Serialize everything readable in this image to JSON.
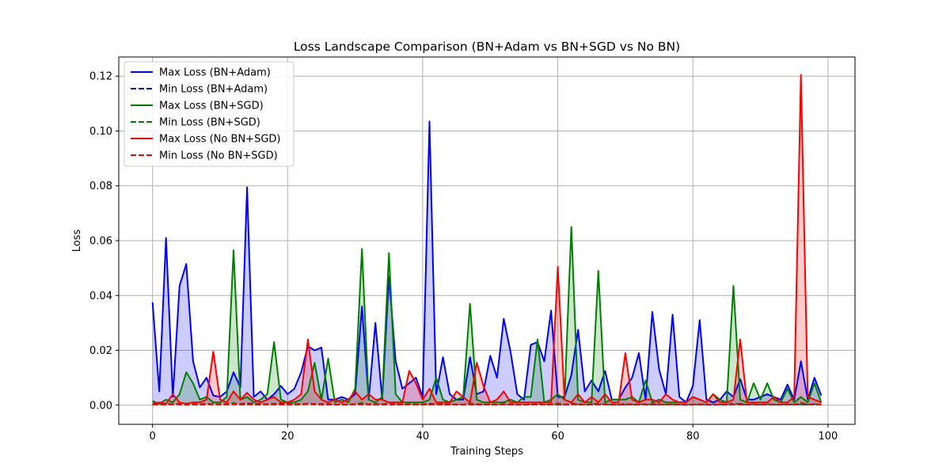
{
  "chart_data": {
    "type": "line",
    "title": "Loss Landscape Comparison (BN+Adam vs BN+SGD vs No BN)",
    "xlabel": "Training Steps",
    "ylabel": "Loss",
    "xlim": [
      -5,
      104
    ],
    "ylim": [
      -0.007,
      0.127
    ],
    "xticks": [
      0,
      20,
      40,
      60,
      80,
      100
    ],
    "yticks": [
      0.0,
      0.02,
      0.04,
      0.06,
      0.08,
      0.1,
      0.12
    ],
    "ytick_labels": [
      "0.00",
      "0.02",
      "0.04",
      "0.06",
      "0.08",
      "0.10",
      "0.12"
    ],
    "grid": true,
    "legend_position": "top-left",
    "x": [
      0,
      1,
      2,
      3,
      4,
      5,
      6,
      7,
      8,
      9,
      10,
      11,
      12,
      13,
      14,
      15,
      16,
      17,
      18,
      19,
      20,
      21,
      22,
      23,
      24,
      25,
      26,
      27,
      28,
      29,
      30,
      31,
      32,
      33,
      34,
      35,
      36,
      37,
      38,
      39,
      40,
      41,
      42,
      43,
      44,
      45,
      46,
      47,
      48,
      49,
      50,
      51,
      52,
      53,
      54,
      55,
      56,
      57,
      58,
      59,
      60,
      61,
      62,
      63,
      64,
      65,
      66,
      67,
      68,
      69,
      70,
      71,
      72,
      73,
      74,
      75,
      76,
      77,
      78,
      79,
      80,
      81,
      82,
      83,
      84,
      85,
      86,
      87,
      88,
      89,
      90,
      91,
      92,
      93,
      94,
      95,
      96,
      97,
      98,
      99
    ],
    "series": [
      {
        "name": "Max Loss (BN+Adam)",
        "color": "#0000ff",
        "style": "solid",
        "fill": "#0000ff",
        "values": [
          0.0375,
          0.005,
          0.061,
          0.003,
          0.0435,
          0.0515,
          0.016,
          0.0065,
          0.01,
          0.0035,
          0.003,
          0.005,
          0.012,
          0.0065,
          0.0795,
          0.003,
          0.005,
          0.002,
          0.004,
          0.007,
          0.004,
          0.006,
          0.012,
          0.0215,
          0.02,
          0.021,
          0.002,
          0.002,
          0.003,
          0.002,
          0.004,
          0.036,
          0.002,
          0.03,
          0.002,
          0.047,
          0.016,
          0.006,
          0.008,
          0.01,
          0.003,
          0.1035,
          0.004,
          0.0175,
          0.004,
          0.002,
          0.002,
          0.0175,
          0.004,
          0.005,
          0.018,
          0.01,
          0.0315,
          0.0195,
          0.004,
          0.002,
          0.022,
          0.023,
          0.016,
          0.0345,
          0.003,
          0.003,
          0.011,
          0.0275,
          0.005,
          0.009,
          0.005,
          0.0125,
          0.002,
          0.002,
          0.0065,
          0.01,
          0.019,
          0.002,
          0.034,
          0.013,
          0.004,
          0.033,
          0.003,
          0.001,
          0.007,
          0.031,
          0.002,
          0.001,
          0.002,
          0.005,
          0.003,
          0.0095,
          0.002,
          0.002,
          0.003,
          0.004,
          0.003,
          0.002,
          0.0075,
          0.002,
          0.016,
          0.002,
          0.01,
          0.0035
        ]
      },
      {
        "name": "Min Loss (BN+Adam)",
        "color": "#0000ff",
        "style": "dashed",
        "values": [
          0.0005,
          0.0003,
          0.0005,
          0.0003,
          0.0005,
          0.0004,
          0.0003,
          0.0003,
          0.0005,
          0.0003,
          0.0003,
          0.0004,
          0.0005,
          0.0004,
          0.0006,
          0.0005,
          0.0004,
          0.0003,
          0.0004,
          0.0005,
          0.0004,
          0.0003,
          0.0004,
          0.0004,
          0.0003,
          0.0004,
          0.0003,
          0.0002,
          0.0003,
          0.0002,
          0.0003,
          0.0005,
          0.0003,
          0.0004,
          0.0003,
          0.0006,
          0.0004,
          0.0003,
          0.0004,
          0.0003,
          0.0003,
          0.0005,
          0.0003,
          0.0004,
          0.0003,
          0.0002,
          0.0002,
          0.0003,
          0.0002,
          0.0002,
          0.0003,
          0.0002,
          0.0004,
          0.0003,
          0.0002,
          0.0002,
          0.0003,
          0.0003,
          0.0002,
          0.0003,
          0.0002,
          0.0002,
          0.0003,
          0.0004,
          0.0002,
          0.0003,
          0.0002,
          0.0003,
          0.0002,
          0.0002,
          0.0002,
          0.0003,
          0.0003,
          0.0002,
          0.0004,
          0.0003,
          0.0002,
          0.0003,
          0.0002,
          0.0001,
          0.0002,
          0.0003,
          0.0002,
          0.0001,
          0.0002,
          0.0002,
          0.0002,
          0.0003,
          0.0002,
          0.0002,
          0.0002,
          0.0002,
          0.0002,
          0.0002,
          0.0003,
          0.0002,
          0.0004,
          0.0002,
          0.0003,
          0.0002
        ]
      },
      {
        "name": "Max Loss (BN+SGD)",
        "color": "#008000",
        "style": "solid",
        "fill": "#008000",
        "values": [
          0.0015,
          0.0005,
          0.002,
          0.001,
          0.004,
          0.012,
          0.008,
          0.002,
          0.003,
          0.001,
          0.001,
          0.003,
          0.0565,
          0.002,
          0.003,
          0.001,
          0.002,
          0.004,
          0.023,
          0.002,
          0.001,
          0.001,
          0.002,
          0.005,
          0.0155,
          0.002,
          0.017,
          0.001,
          0.002,
          0.001,
          0.006,
          0.057,
          0.002,
          0.001,
          0.003,
          0.0555,
          0.004,
          0.001,
          0.001,
          0.001,
          0.001,
          0.002,
          0.01,
          0.002,
          0.001,
          0.002,
          0.003,
          0.037,
          0.002,
          0.001,
          0.001,
          0.001,
          0.001,
          0.002,
          0.001,
          0.003,
          0.003,
          0.024,
          0.001,
          0.002,
          0.004,
          0.002,
          0.065,
          0.002,
          0.001,
          0.001,
          0.049,
          0.001,
          0.002,
          0.002,
          0.002,
          0.003,
          0.001,
          0.009,
          0.001,
          0.002,
          0.001,
          0.001,
          0.001,
          0.001,
          0.003,
          0.002,
          0.001,
          0.004,
          0.002,
          0.001,
          0.0435,
          0.002,
          0.001,
          0.008,
          0.002,
          0.008,
          0.002,
          0.001,
          0.006,
          0.001,
          0.003,
          0.001,
          0.008,
          0.001
        ]
      },
      {
        "name": "Min Loss (BN+SGD)",
        "color": "#008000",
        "style": "dashed",
        "values": [
          0.0003,
          0.0002,
          0.0003,
          0.0002,
          0.0004,
          0.0006,
          0.0004,
          0.0002,
          0.0003,
          0.0002,
          0.0002,
          0.0003,
          0.0008,
          0.0002,
          0.0003,
          0.0002,
          0.0002,
          0.0003,
          0.0006,
          0.0002,
          0.0002,
          0.0002,
          0.0002,
          0.0004,
          0.0005,
          0.0002,
          0.0005,
          0.0002,
          0.0002,
          0.0002,
          0.0004,
          0.0008,
          0.0002,
          0.0002,
          0.0003,
          0.0008,
          0.0003,
          0.0002,
          0.0002,
          0.0002,
          0.0002,
          0.0002,
          0.0004,
          0.0002,
          0.0002,
          0.0002,
          0.0002,
          0.0007,
          0.0002,
          0.0002,
          0.0002,
          0.0002,
          0.0002,
          0.0002,
          0.0002,
          0.0002,
          0.0002,
          0.0006,
          0.0002,
          0.0002,
          0.0003,
          0.0002,
          0.0008,
          0.0002,
          0.0002,
          0.0002,
          0.0007,
          0.0002,
          0.0002,
          0.0002,
          0.0002,
          0.0002,
          0.0002,
          0.0004,
          0.0002,
          0.0002,
          0.0002,
          0.0002,
          0.0002,
          0.0002,
          0.0002,
          0.0002,
          0.0002,
          0.0003,
          0.0002,
          0.0002,
          0.0007,
          0.0002,
          0.0002,
          0.0004,
          0.0002,
          0.0004,
          0.0002,
          0.0002,
          0.0003,
          0.0002,
          0.0002,
          0.0002,
          0.0004,
          0.0002
        ]
      },
      {
        "name": "Max Loss (No BN+SGD)",
        "color": "#ff0000",
        "style": "solid",
        "fill": "#ff0000",
        "values": [
          0.0005,
          0.001,
          0.0005,
          0.004,
          0.001,
          0.0005,
          0.001,
          0.001,
          0.002,
          0.0195,
          0.002,
          0.001,
          0.005,
          0.002,
          0.0045,
          0.002,
          0.001,
          0.002,
          0.003,
          0.001,
          0.001,
          0.002,
          0.004,
          0.024,
          0.005,
          0.002,
          0.001,
          0.002,
          0.001,
          0.002,
          0.005,
          0.002,
          0.004,
          0.002,
          0.002,
          0.001,
          0.001,
          0.001,
          0.0125,
          0.008,
          0.002,
          0.006,
          0.001,
          0.001,
          0.001,
          0.005,
          0.003,
          0.001,
          0.0155,
          0.007,
          0.001,
          0.002,
          0.005,
          0.001,
          0.001,
          0.001,
          0.001,
          0.001,
          0.001,
          0.001,
          0.0505,
          0.002,
          0.001,
          0.004,
          0.001,
          0.003,
          0.001,
          0.004,
          0.001,
          0.001,
          0.019,
          0.002,
          0.001,
          0.002,
          0.002,
          0.001,
          0.004,
          0.002,
          0.001,
          0.001,
          0.003,
          0.002,
          0.001,
          0.004,
          0.001,
          0.001,
          0.002,
          0.024,
          0.001,
          0.001,
          0.001,
          0.001,
          0.003,
          0.001,
          0.001,
          0.003,
          0.1205,
          0.003,
          0.002,
          0.001
        ]
      },
      {
        "name": "Min Loss (No BN+SGD)",
        "color": "#ff0000",
        "style": "dashed",
        "values": [
          0.0001,
          0.0002,
          0.0001,
          0.0003,
          0.0002,
          0.0001,
          0.0002,
          0.0002,
          0.0002,
          0.0005,
          0.0002,
          0.0002,
          0.0003,
          0.0002,
          0.0003,
          0.0002,
          0.0002,
          0.0002,
          0.0002,
          0.0002,
          0.0002,
          0.0002,
          0.0003,
          0.0006,
          0.0003,
          0.0002,
          0.0002,
          0.0002,
          0.0002,
          0.0002,
          0.0003,
          0.0002,
          0.0003,
          0.0002,
          0.0002,
          0.0002,
          0.0002,
          0.0002,
          0.0004,
          0.0003,
          0.0002,
          0.0003,
          0.0002,
          0.0002,
          0.0002,
          0.0003,
          0.0002,
          0.0002,
          0.0004,
          0.0003,
          0.0002,
          0.0002,
          0.0003,
          0.0002,
          0.0002,
          0.0002,
          0.0002,
          0.0002,
          0.0002,
          0.0002,
          0.0007,
          0.0002,
          0.0002,
          0.0003,
          0.0002,
          0.0002,
          0.0002,
          0.0003,
          0.0002,
          0.0002,
          0.0005,
          0.0002,
          0.0002,
          0.0002,
          0.0002,
          0.0002,
          0.0003,
          0.0002,
          0.0002,
          0.0002,
          0.0002,
          0.0002,
          0.0002,
          0.0003,
          0.0002,
          0.0002,
          0.0002,
          0.0006,
          0.0002,
          0.0002,
          0.0002,
          0.0002,
          0.0002,
          0.0002,
          0.0002,
          0.0002,
          0.0009,
          0.0002,
          0.0002,
          0.0002
        ]
      }
    ]
  }
}
